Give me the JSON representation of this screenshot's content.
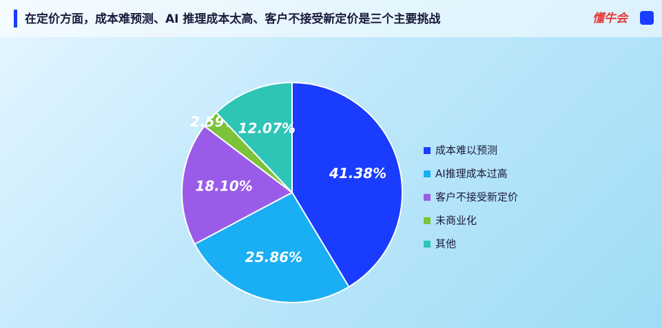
{
  "header": {
    "logo": "懂牛会"
  },
  "chart_data": {
    "type": "pie",
    "title": "在定价方面，成本难预测、AI 推理成本太高、客户不接受新定价是三个主要挑战",
    "categories": [
      "成本难以预测",
      "AI推理成本过高",
      "客户不接受新定价",
      "未商业化",
      "其他"
    ],
    "values": [
      41.38,
      25.86,
      18.1,
      2.59,
      12.07
    ],
    "value_labels": [
      "41.38%",
      "25.86%",
      "18.10%",
      "2.59%",
      "12.07%"
    ],
    "colors": [
      "#1a3cff",
      "#1aaef5",
      "#9a5ce8",
      "#7cc23a",
      "#2ec4b6"
    ],
    "legend": "right"
  }
}
